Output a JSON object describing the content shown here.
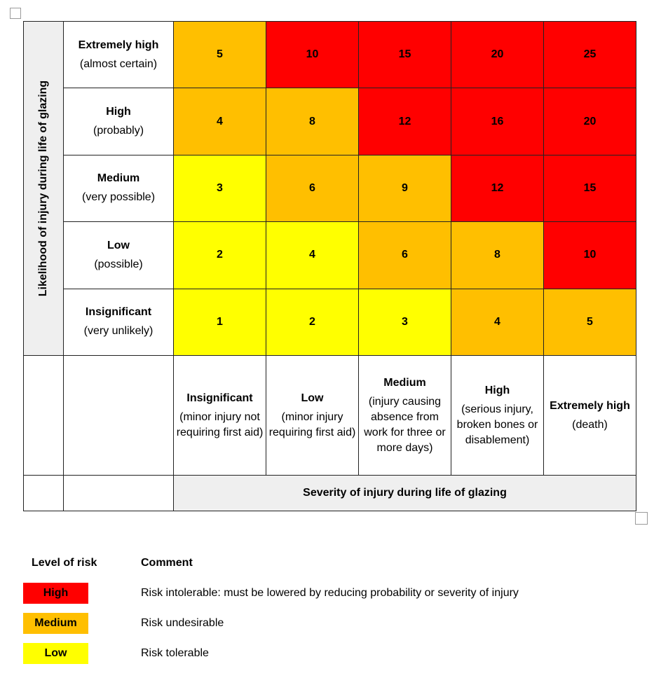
{
  "colors": {
    "high": "#ff0000",
    "medium": "#ffbf00",
    "low": "#ffff00",
    "label_bg": "#efefef"
  },
  "matrix": {
    "y_axis_label": "Likelihood of injury during life of glazing",
    "x_axis_label": "Severity of injury during life of glazing",
    "likelihood_rows": [
      {
        "title": "Extremely high",
        "sub": "(almost certain)"
      },
      {
        "title": "High",
        "sub": "(probably)"
      },
      {
        "title": "Medium",
        "sub": "(very possible)"
      },
      {
        "title": "Low",
        "sub": "(possible)"
      },
      {
        "title": "Insignificant",
        "sub": "(very unlikely)"
      }
    ],
    "severity_columns": [
      {
        "title": "Insignificant",
        "sub": "(minor injury not requiring first aid)"
      },
      {
        "title": "Low",
        "sub": "(minor injury requiring first aid)"
      },
      {
        "title": "Medium",
        "sub": "(injury causing absence from work for three or more days)"
      },
      {
        "title": "High",
        "sub": "(serious injury, broken bones or disablement)"
      },
      {
        "title": "Extremely high",
        "sub": "(death)"
      }
    ],
    "scores": [
      [
        5,
        10,
        15,
        20,
        25
      ],
      [
        4,
        8,
        12,
        16,
        20
      ],
      [
        3,
        6,
        9,
        12,
        15
      ],
      [
        2,
        4,
        6,
        8,
        10
      ],
      [
        1,
        2,
        3,
        4,
        5
      ]
    ],
    "levels": [
      [
        "medium",
        "high",
        "high",
        "high",
        "high"
      ],
      [
        "medium",
        "medium",
        "high",
        "high",
        "high"
      ],
      [
        "low",
        "medium",
        "medium",
        "high",
        "high"
      ],
      [
        "low",
        "low",
        "medium",
        "medium",
        "high"
      ],
      [
        "low",
        "low",
        "low",
        "medium",
        "medium"
      ]
    ]
  },
  "legend": {
    "level_header": "Level of risk",
    "comment_header": "Comment",
    "items": [
      {
        "level": "high",
        "label": "High",
        "comment": "Risk intolerable: must be lowered by reducing probability or severity of injury"
      },
      {
        "level": "medium",
        "label": "Medium",
        "comment": "Risk undesirable"
      },
      {
        "level": "low",
        "label": "Low",
        "comment": "Risk tolerable"
      }
    ]
  }
}
